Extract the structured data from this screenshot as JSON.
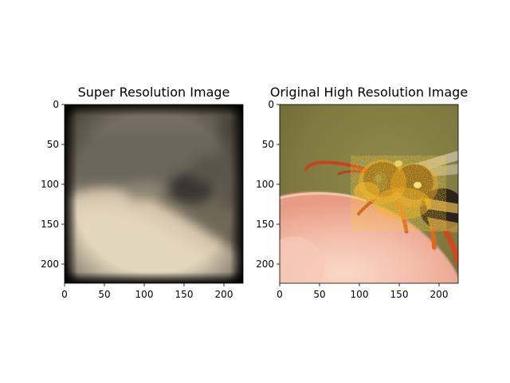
{
  "figure": {
    "panels": [
      {
        "title": "Super Resolution Image",
        "image_description": "blurry low-detail reconstruction: dark greyish-brown top region, light beige lower-left region, darker blob near upper right, dark vignette around edges",
        "xticks": [
          "0",
          "50",
          "100",
          "150",
          "200"
        ],
        "yticks": [
          "0",
          "50",
          "100",
          "150",
          "200"
        ]
      },
      {
        "title": "Original High Resolution Image",
        "image_description": "macro photo of a bee covered in orange-yellow pollen perched on a pink fingertip, olive green background",
        "xticks": [
          "0",
          "50",
          "100",
          "150",
          "200"
        ],
        "yticks": [
          "0",
          "50",
          "100",
          "150",
          "200"
        ]
      }
    ]
  },
  "chart_data": [
    {
      "type": "image",
      "title": "Super Resolution Image",
      "xlim": [
        0,
        224
      ],
      "ylim": [
        224,
        0
      ],
      "xticks": [
        0,
        50,
        100,
        150,
        200
      ],
      "yticks": [
        0,
        50,
        100,
        150,
        200
      ]
    },
    {
      "type": "image",
      "title": "Original High Resolution Image",
      "xlim": [
        0,
        224
      ],
      "ylim": [
        224,
        0
      ],
      "xticks": [
        0,
        50,
        100,
        150,
        200
      ],
      "yticks": [
        0,
        50,
        100,
        150,
        200
      ]
    }
  ]
}
